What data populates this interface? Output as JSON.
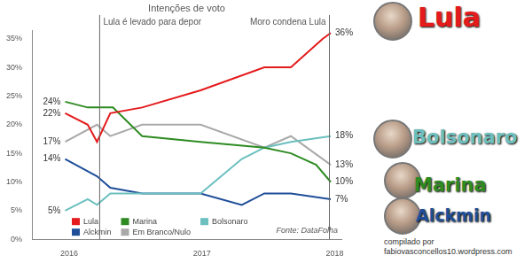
{
  "chart_data": {
    "type": "line",
    "title": "Intenções de voto",
    "xlim": [
      2015.72,
      2018.05
    ],
    "xticks": [
      2016,
      2017,
      2018
    ],
    "ylim": [
      0,
      36.5
    ],
    "yticks": [
      {
        "value": 0,
        "label": "0%"
      },
      {
        "value": 5,
        "label": "5%"
      },
      {
        "value": 10,
        "label": "10%"
      },
      {
        "value": 15,
        "label": "15%"
      },
      {
        "value": 20,
        "label": "20%"
      },
      {
        "value": 25,
        "label": "25%"
      },
      {
        "value": 30,
        "label": "30%"
      },
      {
        "value": 35,
        "label": "35%"
      }
    ],
    "grid": false,
    "legend": "lower left",
    "data_labels": true,
    "series": [
      {
        "name": "Lula",
        "color": "#e41a1c",
        "x": [
          2015.97,
          2016.14,
          2016.21,
          2016.31,
          2016.55,
          2016.99,
          2017.47,
          2017.67,
          2017.91,
          2017.97
        ],
        "values": [
          22,
          20,
          17,
          22,
          23,
          26,
          30,
          30,
          35,
          36
        ],
        "value_labels": [
          "22%",
          null,
          null,
          null,
          null,
          null,
          null,
          null,
          null,
          "36%"
        ]
      },
      {
        "name": "Marina",
        "color": "#2e8b22",
        "x": [
          2015.97,
          2016.14,
          2016.33,
          2016.55,
          2016.99,
          2017.47,
          2017.67,
          2017.86,
          2017.97
        ],
        "values": [
          24,
          23,
          23,
          18,
          17,
          16,
          15,
          13,
          10
        ],
        "value_labels": [
          "24%",
          null,
          null,
          null,
          null,
          null,
          null,
          null,
          "10%"
        ]
      },
      {
        "name": "Bolsonaro",
        "color": "#6cbfbf",
        "x": [
          2015.97,
          2016.14,
          2016.21,
          2016.31,
          2016.55,
          2016.99,
          2017.3,
          2017.47,
          2017.67,
          2017.97
        ],
        "values": [
          5,
          7,
          6,
          8,
          8,
          8,
          14,
          16,
          17,
          18
        ],
        "value_labels": [
          "5%",
          null,
          null,
          null,
          null,
          null,
          null,
          null,
          null,
          "18%"
        ]
      },
      {
        "name": "Alckmin",
        "color": "#1f4e99",
        "x": [
          2015.97,
          2016.21,
          2016.31,
          2016.55,
          2016.99,
          2017.3,
          2017.47,
          2017.67,
          2017.97
        ],
        "values": [
          14,
          11,
          9,
          8,
          8,
          6,
          8,
          8,
          7
        ],
        "value_labels": [
          "14%",
          null,
          null,
          null,
          null,
          null,
          null,
          null,
          "7%"
        ]
      },
      {
        "name": "Em Branco/Nulo",
        "color": "#a9a9a9",
        "x": [
          2015.97,
          2016.21,
          2016.31,
          2016.55,
          2016.99,
          2017.47,
          2017.67,
          2017.97
        ],
        "values": [
          17,
          20,
          18,
          20,
          20,
          16,
          18,
          13
        ],
        "value_labels": [
          "17%",
          null,
          null,
          null,
          null,
          null,
          null,
          "13%"
        ]
      }
    ],
    "annotations": [
      {
        "text": "Lula é levado para depor",
        "x": 2016.23
      },
      {
        "text": "Moro condena Lula",
        "x": 2017.96
      }
    ],
    "source": "Fonte: DataFolha",
    "side_labels": [
      "Lula",
      "Bolsonaro",
      "Marina",
      "Alckmin"
    ],
    "credit": [
      "compilado por",
      "fabiovasconcellos10.wordpress.com"
    ]
  }
}
